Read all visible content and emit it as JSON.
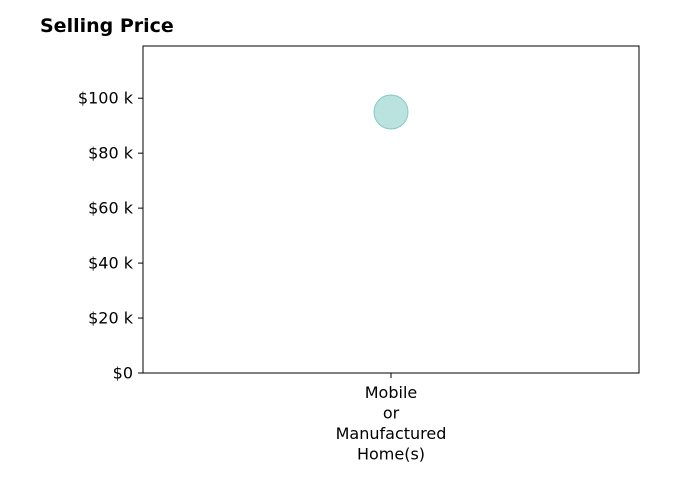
{
  "chart_data": {
    "type": "scatter",
    "title": "Selling Price",
    "xlabel": "",
    "ylabel": "",
    "categories": [
      "Mobile\nor\nManufactured\nHome(s)"
    ],
    "values": [
      95000
    ],
    "ylim": [
      0,
      119000
    ],
    "yticks": [
      {
        "value": 0,
        "label": "$0"
      },
      {
        "value": 20000,
        "label": "$20 k"
      },
      {
        "value": 40000,
        "label": "$40 k"
      },
      {
        "value": 60000,
        "label": "$60 k"
      },
      {
        "value": 80000,
        "label": "$80 k"
      },
      {
        "value": 100000,
        "label": "$100 k"
      }
    ],
    "grid": false,
    "marker_color": "#b2dfdb",
    "marker_edge_color": "#80cbc4"
  }
}
